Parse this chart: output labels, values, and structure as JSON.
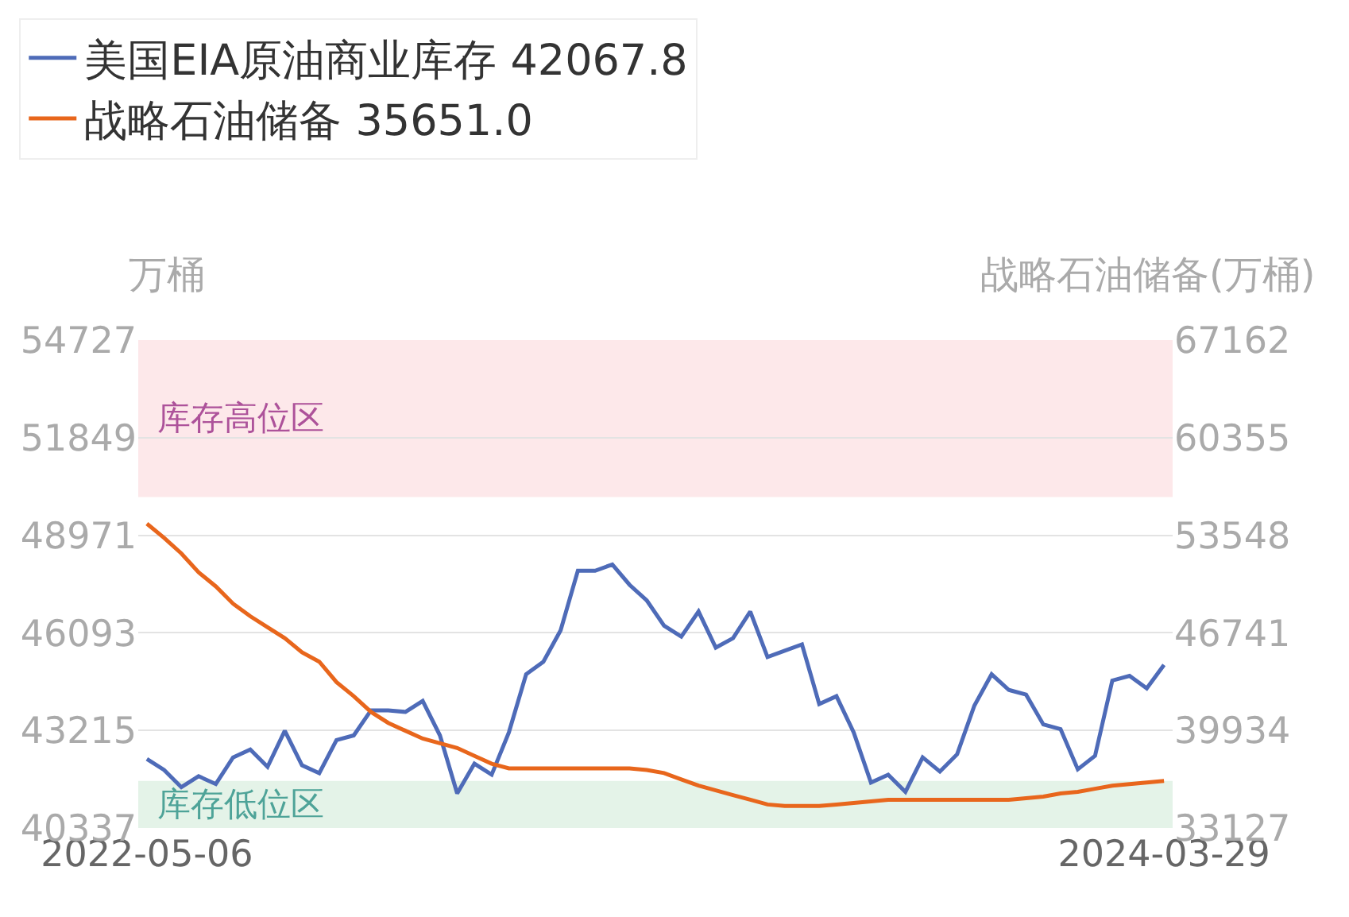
{
  "chart_data": {
    "type": "line",
    "ylabel": "万桶",
    "y2label": "战略石油储备(万桶)",
    "categories": [
      "2022-05-06",
      null,
      null,
      null,
      null,
      null,
      null,
      null,
      null,
      null,
      null,
      null,
      null,
      null,
      null,
      null,
      null,
      null,
      null,
      null,
      null,
      null,
      null,
      null,
      null,
      null,
      null,
      null,
      null,
      null,
      null,
      null,
      null,
      null,
      null,
      null,
      null,
      null,
      null,
      null,
      null,
      null,
      null,
      null,
      null,
      null,
      null,
      null,
      null,
      null,
      null,
      null,
      null,
      null,
      null,
      null,
      null,
      null,
      null,
      "2024-03-29"
    ],
    "series": [
      {
        "name": "美国EIA原油商业库存 42067.8",
        "color": "#4e6bb8",
        "values": [
          42373,
          42049,
          41540,
          41864,
          41633,
          42419,
          42651,
          42142,
          43206,
          42188,
          41956,
          42928,
          43067,
          43807,
          43807,
          43761,
          44085,
          43067,
          41355,
          42234,
          41910,
          43159,
          44871,
          45242,
          46167,
          47925,
          47925,
          48110,
          47509,
          47046,
          46306,
          45982,
          46722,
          45658,
          45936,
          46722,
          45380,
          45566,
          45751,
          43992,
          44224,
          43159,
          41679,
          41910,
          41401,
          42419,
          42003,
          42512,
          43946,
          44871,
          44409,
          44270,
          43391,
          43252,
          42068,
          42465,
          44686,
          44825,
          44455,
          45149
        ]
      },
      {
        "name": "战略石油储备 35651.0",
        "color": "#e8661c",
        "axis": "y2",
        "values": [
          54357,
          53372,
          52277,
          50964,
          49979,
          48775,
          47900,
          47134,
          46368,
          45383,
          44727,
          43304,
          42319,
          41225,
          40459,
          39912,
          39365,
          39036,
          38708,
          38161,
          37614,
          37285,
          37285,
          37285,
          37285,
          37285,
          37285,
          37285,
          37285,
          37176,
          36957,
          36519,
          36082,
          35753,
          35425,
          35097,
          34768,
          34659,
          34659,
          34659,
          34768,
          34878,
          34987,
          35097,
          35097,
          35097,
          35097,
          35097,
          35097,
          35097,
          35097,
          35206,
          35316,
          35534,
          35651,
          35863,
          36082,
          36191,
          36300,
          36410
        ]
      }
    ],
    "ylim": [
      40337,
      54727
    ],
    "yticks": [
      40337,
      43215,
      46093,
      48971,
      51849,
      54727
    ],
    "y2lim": [
      33127,
      67162
    ],
    "y2ticks": [
      33127,
      39934,
      46741,
      53548,
      60355,
      67162
    ],
    "bands": [
      {
        "axis": "y",
        "from": 50100,
        "to": 54727,
        "label": "库存高位区",
        "color": "#fde8ea"
      },
      {
        "axis": "y",
        "from": 40337,
        "to": 41725,
        "label": "库存低位区",
        "color": "#e4f3e8"
      }
    ],
    "grid": "y",
    "legend": "top",
    "marker": "none",
    "line_style": "solid"
  }
}
